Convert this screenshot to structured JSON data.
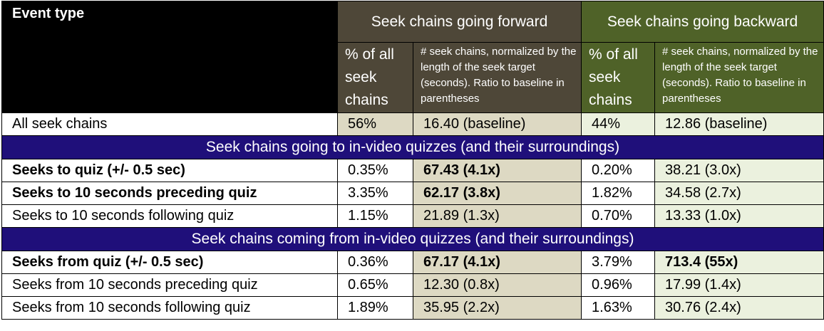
{
  "header": {
    "event_type": "Event type",
    "forward_group": "Seek chains going forward",
    "backward_group": "Seek chains going backward",
    "pct_label": "% of all seek chains",
    "norm_label": "# seek chains, normalized by the length of the seek target (seconds). Ratio to baseline in parentheses"
  },
  "baseline": {
    "label": "All seek chains",
    "fwd_pct": "56%",
    "fwd_norm": "16.40 (baseline)",
    "bwd_pct": "44%",
    "bwd_norm": "12.86 (baseline)"
  },
  "sections": [
    {
      "title": "Seek chains going to in-video quizzes (and their surroundings)",
      "rows": [
        {
          "label": "Seeks to quiz (+/- 0.5 sec)",
          "fwd_pct": "0.35%",
          "fwd_norm": "67.43 (4.1x)",
          "bwd_pct": "0.20%",
          "bwd_norm": "38.21 (3.0x)"
        },
        {
          "label": "Seeks to 10 seconds preceding quiz",
          "fwd_pct": "3.35%",
          "fwd_norm": "62.17 (3.8x)",
          "bwd_pct": "1.82%",
          "bwd_norm": "34.58 (2.7x)"
        },
        {
          "label": "Seeks to 10 seconds following quiz",
          "fwd_pct": "1.15%",
          "fwd_norm": "21.89 (1.3x)",
          "bwd_pct": "0.70%",
          "bwd_norm": "13.33 (1.0x)"
        }
      ]
    },
    {
      "title": "Seek chains coming from in-video quizzes (and their surroundings)",
      "rows": [
        {
          "label": "Seeks from quiz (+/- 0.5 sec)",
          "fwd_pct": "0.36%",
          "fwd_norm": "67.17 (4.1x)",
          "bwd_pct": "3.79%",
          "bwd_norm": "713.4 (55x)"
        },
        {
          "label": "Seeks from 10 seconds preceding quiz",
          "fwd_pct": "0.65%",
          "fwd_norm": "12.30 (0.8x)",
          "bwd_pct": "0.96%",
          "bwd_norm": "17.99 (1.4x)"
        },
        {
          "label": "Seeks from 10 seconds following quiz",
          "fwd_pct": "1.89%",
          "fwd_norm": "35.95 (2.2x)",
          "bwd_pct": "1.63%",
          "bwd_norm": "30.76 (2.4x)"
        }
      ]
    }
  ]
}
